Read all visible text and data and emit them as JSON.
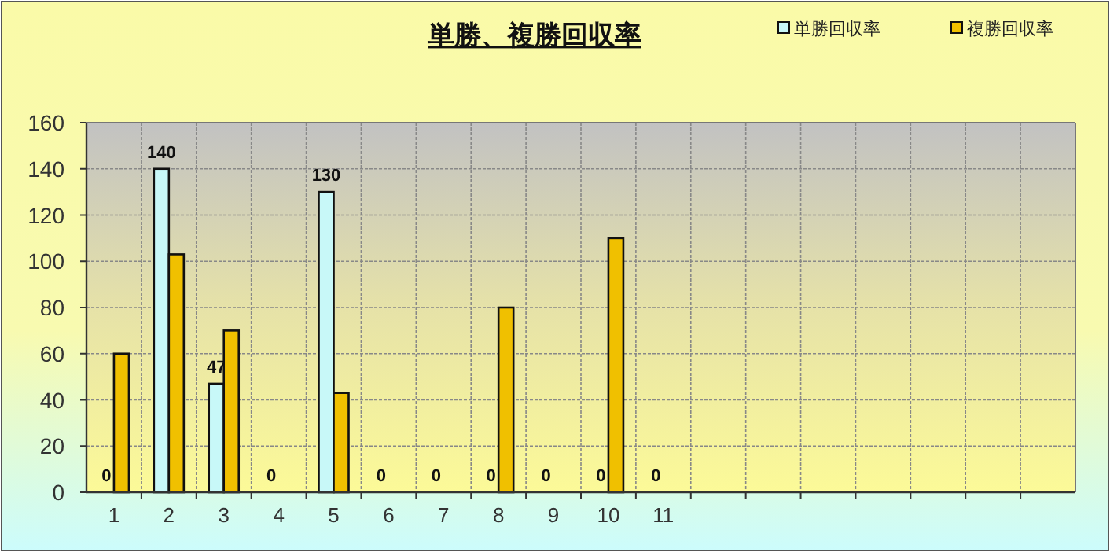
{
  "chart_data": {
    "type": "bar",
    "title": "単勝、複勝回収率",
    "categories": [
      "1",
      "2",
      "3",
      "4",
      "5",
      "6",
      "7",
      "8",
      "9",
      "10",
      "11",
      null,
      null,
      null,
      null,
      null,
      null,
      null
    ],
    "series": [
      {
        "name": "単勝回収率",
        "color": "#c8f8f8",
        "values": [
          0,
          140,
          47,
          0,
          130,
          0,
          0,
          0,
          0,
          0,
          0,
          null,
          null,
          null,
          null,
          null,
          null,
          null
        ],
        "value_labels": [
          "0",
          "140",
          "47",
          "0",
          "130",
          "0",
          "0",
          "0",
          "0",
          "0",
          "0",
          null,
          null,
          null,
          null,
          null,
          null,
          null
        ]
      },
      {
        "name": "複勝回収率",
        "color": "#f0c000",
        "values": [
          60,
          103,
          70,
          0,
          43,
          0,
          0,
          80,
          0,
          110,
          0,
          null,
          null,
          null,
          null,
          null,
          null,
          null
        ]
      }
    ],
    "ylim": [
      0,
      160
    ],
    "yticks": [
      0,
      20,
      40,
      60,
      80,
      100,
      120,
      140,
      160
    ],
    "grid": true,
    "legend": "top right"
  }
}
